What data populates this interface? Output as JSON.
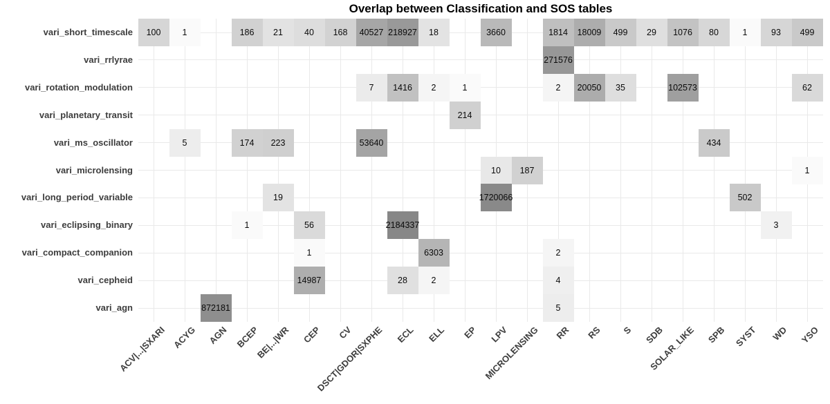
{
  "title": "Overlap between Classification and SOS tables",
  "chart_data": {
    "type": "heatmap",
    "title": "Overlap between Classification and SOS tables",
    "xlabel": "",
    "ylabel": "",
    "legend": "none",
    "x_tick_angle": 45,
    "grid": "on",
    "columns": [
      "ACV|...|SXARI",
      "ACYG",
      "AGN",
      "BCEP",
      "BE|...|WR",
      "CEP",
      "CV",
      "DSCT|GDOR|SXPHE",
      "ECL",
      "ELL",
      "EP",
      "LPV",
      "MICROLENSING",
      "RR",
      "RS",
      "S",
      "SDB",
      "SOLAR_LIKE",
      "SPB",
      "SYST",
      "WD",
      "YSO"
    ],
    "rows": [
      "vari_short_timescale",
      "vari_rrlyrae",
      "vari_rotation_modulation",
      "vari_planetary_transit",
      "vari_ms_oscillator",
      "vari_microlensing",
      "vari_long_period_variable",
      "vari_eclipsing_binary",
      "vari_compact_companion",
      "vari_cepheid",
      "vari_agn"
    ],
    "cells": [
      {
        "row": "vari_short_timescale",
        "col": "ACV|...|SXARI",
        "value": 100
      },
      {
        "row": "vari_short_timescale",
        "col": "ACYG",
        "value": 1
      },
      {
        "row": "vari_short_timescale",
        "col": "BCEP",
        "value": 186
      },
      {
        "row": "vari_short_timescale",
        "col": "BE|...|WR",
        "value": 21
      },
      {
        "row": "vari_short_timescale",
        "col": "CEP",
        "value": 40
      },
      {
        "row": "vari_short_timescale",
        "col": "CV",
        "value": 168
      },
      {
        "row": "vari_short_timescale",
        "col": "DSCT|GDOR|SXPHE",
        "value": 40527
      },
      {
        "row": "vari_short_timescale",
        "col": "ECL",
        "value": 218927
      },
      {
        "row": "vari_short_timescale",
        "col": "ELL",
        "value": 18
      },
      {
        "row": "vari_short_timescale",
        "col": "LPV",
        "value": 3660
      },
      {
        "row": "vari_short_timescale",
        "col": "RR",
        "value": 1814
      },
      {
        "row": "vari_short_timescale",
        "col": "RS",
        "value": 18009
      },
      {
        "row": "vari_short_timescale",
        "col": "S",
        "value": 499
      },
      {
        "row": "vari_short_timescale",
        "col": "SDB",
        "value": 29
      },
      {
        "row": "vari_short_timescale",
        "col": "SOLAR_LIKE",
        "value": 1076
      },
      {
        "row": "vari_short_timescale",
        "col": "SPB",
        "value": 80
      },
      {
        "row": "vari_short_timescale",
        "col": "SYST",
        "value": 1
      },
      {
        "row": "vari_short_timescale",
        "col": "WD",
        "value": 93
      },
      {
        "row": "vari_short_timescale",
        "col": "YSO",
        "value": 499
      },
      {
        "row": "vari_rrlyrae",
        "col": "RR",
        "value": 271576
      },
      {
        "row": "vari_rotation_modulation",
        "col": "DSCT|GDOR|SXPHE",
        "value": 7
      },
      {
        "row": "vari_rotation_modulation",
        "col": "ECL",
        "value": 1416
      },
      {
        "row": "vari_rotation_modulation",
        "col": "ELL",
        "value": 2
      },
      {
        "row": "vari_rotation_modulation",
        "col": "EP",
        "value": 1
      },
      {
        "row": "vari_rotation_modulation",
        "col": "RR",
        "value": 2
      },
      {
        "row": "vari_rotation_modulation",
        "col": "RS",
        "value": 20050
      },
      {
        "row": "vari_rotation_modulation",
        "col": "S",
        "value": 35
      },
      {
        "row": "vari_rotation_modulation",
        "col": "SOLAR_LIKE",
        "value": 102573
      },
      {
        "row": "vari_rotation_modulation",
        "col": "YSO",
        "value": 62
      },
      {
        "row": "vari_planetary_transit",
        "col": "EP",
        "value": 214
      },
      {
        "row": "vari_ms_oscillator",
        "col": "ACYG",
        "value": 5
      },
      {
        "row": "vari_ms_oscillator",
        "col": "BCEP",
        "value": 174
      },
      {
        "row": "vari_ms_oscillator",
        "col": "BE|...|WR",
        "value": 223
      },
      {
        "row": "vari_ms_oscillator",
        "col": "DSCT|GDOR|SXPHE",
        "value": 53640
      },
      {
        "row": "vari_ms_oscillator",
        "col": "SPB",
        "value": 434
      },
      {
        "row": "vari_microlensing",
        "col": "LPV",
        "value": 10
      },
      {
        "row": "vari_microlensing",
        "col": "MICROLENSING",
        "value": 187
      },
      {
        "row": "vari_microlensing",
        "col": "YSO",
        "value": 1
      },
      {
        "row": "vari_long_period_variable",
        "col": "BE|...|WR",
        "value": 19
      },
      {
        "row": "vari_long_period_variable",
        "col": "LPV",
        "value": 1720066
      },
      {
        "row": "vari_long_period_variable",
        "col": "SYST",
        "value": 502
      },
      {
        "row": "vari_eclipsing_binary",
        "col": "BCEP",
        "value": 1
      },
      {
        "row": "vari_eclipsing_binary",
        "col": "CEP",
        "value": 56
      },
      {
        "row": "vari_eclipsing_binary",
        "col": "ECL",
        "value": 2184337
      },
      {
        "row": "vari_eclipsing_binary",
        "col": "WD",
        "value": 3
      },
      {
        "row": "vari_compact_companion",
        "col": "CEP",
        "value": 1
      },
      {
        "row": "vari_compact_companion",
        "col": "ELL",
        "value": 6303
      },
      {
        "row": "vari_compact_companion",
        "col": "RR",
        "value": 2
      },
      {
        "row": "vari_cepheid",
        "col": "CEP",
        "value": 14987
      },
      {
        "row": "vari_cepheid",
        "col": "ECL",
        "value": 28
      },
      {
        "row": "vari_cepheid",
        "col": "ELL",
        "value": 2
      },
      {
        "row": "vari_cepheid",
        "col": "RR",
        "value": 4
      },
      {
        "row": "vari_agn",
        "col": "AGN",
        "value": 872181
      },
      {
        "row": "vari_agn",
        "col": "RR",
        "value": 5
      }
    ],
    "color_scale": {
      "scale": "log10",
      "low": "#fafafa",
      "high": "#878787"
    },
    "colors": {
      "grid": "#e9e9e9",
      "value_text": "#0a0a0a",
      "axis_text": "#3d3d3d",
      "title_text": "#000000"
    }
  }
}
